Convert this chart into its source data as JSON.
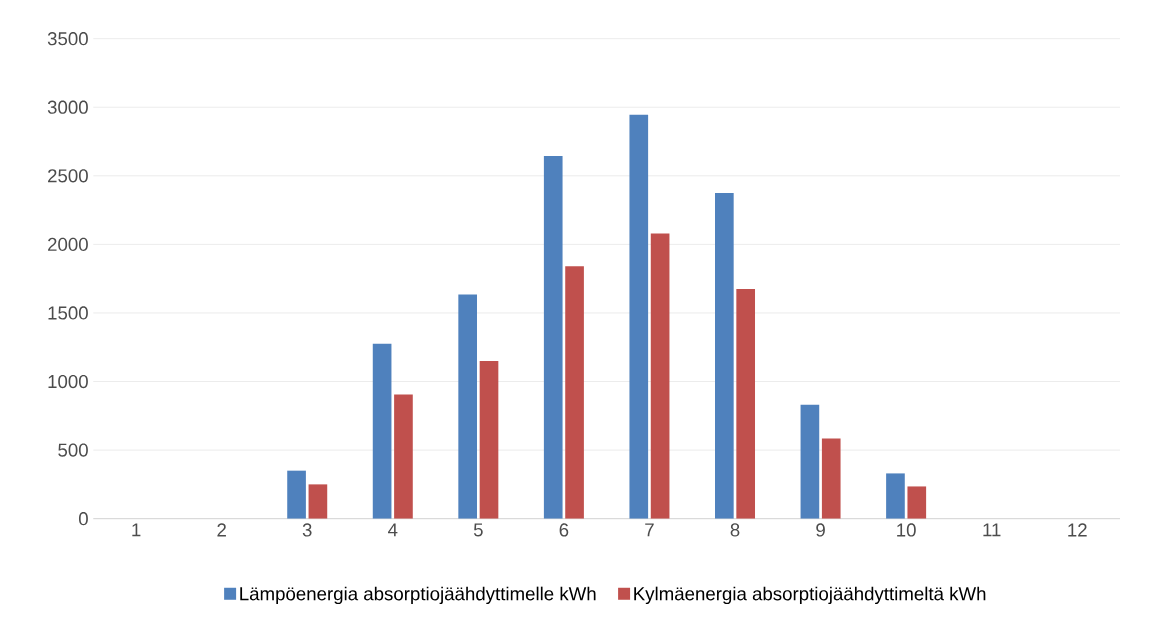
{
  "chart_data": {
    "type": "bar",
    "categories": [
      "1",
      "2",
      "3",
      "4",
      "5",
      "6",
      "7",
      "8",
      "9",
      "10",
      "11",
      "12"
    ],
    "series": [
      {
        "name": "Lämpöenergia absorptiojäähdyttimelle kWh",
        "color": "#4f81bd",
        "values": [
          0,
          0,
          350,
          1275,
          1635,
          2645,
          2945,
          2375,
          830,
          330,
          0,
          0
        ]
      },
      {
        "name": "Kylmäenergia absorptiojäähdyttimeltä kWh",
        "color": "#c0504d",
        "values": [
          0,
          0,
          250,
          905,
          1150,
          1840,
          2080,
          1675,
          585,
          235,
          0,
          0
        ]
      }
    ],
    "ylim": [
      0,
      3500
    ],
    "yticks": [
      0,
      500,
      1000,
      1500,
      2000,
      2500,
      3000,
      3500
    ],
    "grid": "y",
    "legend": "bottom"
  }
}
